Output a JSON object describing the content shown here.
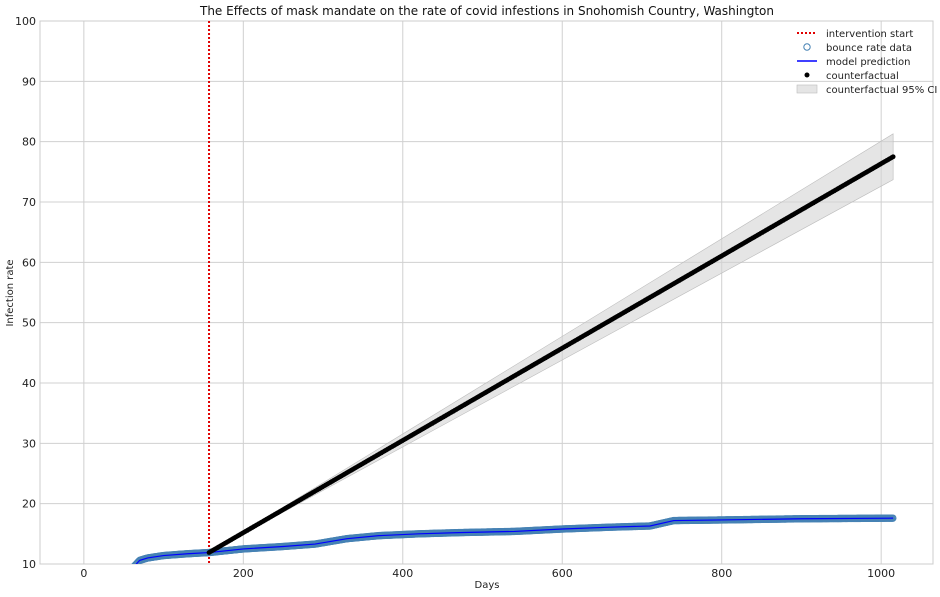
{
  "chart_data": {
    "type": "scatter",
    "title": "The Effects of mask mandate on the rate of covid infestions in Snohomish Country, Washington",
    "xlabel": "Days",
    "ylabel": "Infection rate",
    "xlim": [
      -55,
      1065
    ],
    "ylim": [
      10,
      100
    ],
    "xticks": [
      0,
      200,
      400,
      600,
      800,
      1000
    ],
    "yticks": [
      10,
      20,
      30,
      40,
      50,
      60,
      70,
      80,
      90,
      100
    ],
    "grid": true,
    "legend_position": "top-right",
    "intervention_x": 157,
    "series": [
      {
        "name": "bounce rate data",
        "kind": "scatter-hollow",
        "color": "#4682b4",
        "points": [
          [
            63,
            9.6
          ],
          [
            70,
            10.6
          ],
          [
            80,
            11.0
          ],
          [
            100,
            11.4
          ],
          [
            130,
            11.7
          ],
          [
            157,
            11.9
          ],
          [
            200,
            12.5
          ],
          [
            250,
            12.9
          ],
          [
            290,
            13.3
          ],
          [
            330,
            14.2
          ],
          [
            370,
            14.7
          ],
          [
            420,
            15.0
          ],
          [
            470,
            15.2
          ],
          [
            540,
            15.4
          ],
          [
            600,
            15.8
          ],
          [
            660,
            16.1
          ],
          [
            710,
            16.3
          ],
          [
            740,
            17.2
          ],
          [
            800,
            17.3
          ],
          [
            900,
            17.5
          ],
          [
            1015,
            17.6
          ]
        ]
      },
      {
        "name": "model prediction",
        "kind": "line",
        "color": "#0000ff",
        "points": [
          [
            63,
            9.6
          ],
          [
            70,
            10.6
          ],
          [
            80,
            11.0
          ],
          [
            100,
            11.4
          ],
          [
            130,
            11.7
          ],
          [
            157,
            11.9
          ],
          [
            200,
            12.5
          ],
          [
            250,
            12.9
          ],
          [
            290,
            13.3
          ],
          [
            330,
            14.2
          ],
          [
            370,
            14.7
          ],
          [
            420,
            15.0
          ],
          [
            470,
            15.2
          ],
          [
            540,
            15.4
          ],
          [
            600,
            15.8
          ],
          [
            660,
            16.1
          ],
          [
            710,
            16.3
          ],
          [
            740,
            17.2
          ],
          [
            800,
            17.3
          ],
          [
            900,
            17.5
          ],
          [
            1015,
            17.6
          ]
        ]
      },
      {
        "name": "counterfactual",
        "kind": "scatter-filled",
        "color": "#000000",
        "start": [
          157,
          11.9
        ],
        "end": [
          1015,
          77.5
        ]
      },
      {
        "name": "counterfactual 95% CI",
        "kind": "band",
        "color": "#d3d3d3",
        "x_start": 157,
        "x_end": 1015,
        "lower_start": 11.9,
        "lower_end": 73.7,
        "upper_start": 11.9,
        "upper_end": 81.3
      }
    ],
    "legend": [
      {
        "label": "intervention start",
        "marker": "dotted-line",
        "color": "#e00000"
      },
      {
        "label": "bounce rate data",
        "marker": "hollow-circle",
        "color": "#4682b4"
      },
      {
        "label": "model prediction",
        "marker": "line",
        "color": "#0000ff"
      },
      {
        "label": "counterfactual",
        "marker": "dot",
        "color": "#000000"
      },
      {
        "label": "counterfactual 95% CI",
        "marker": "patch",
        "color": "#d3d3d3"
      }
    ]
  }
}
